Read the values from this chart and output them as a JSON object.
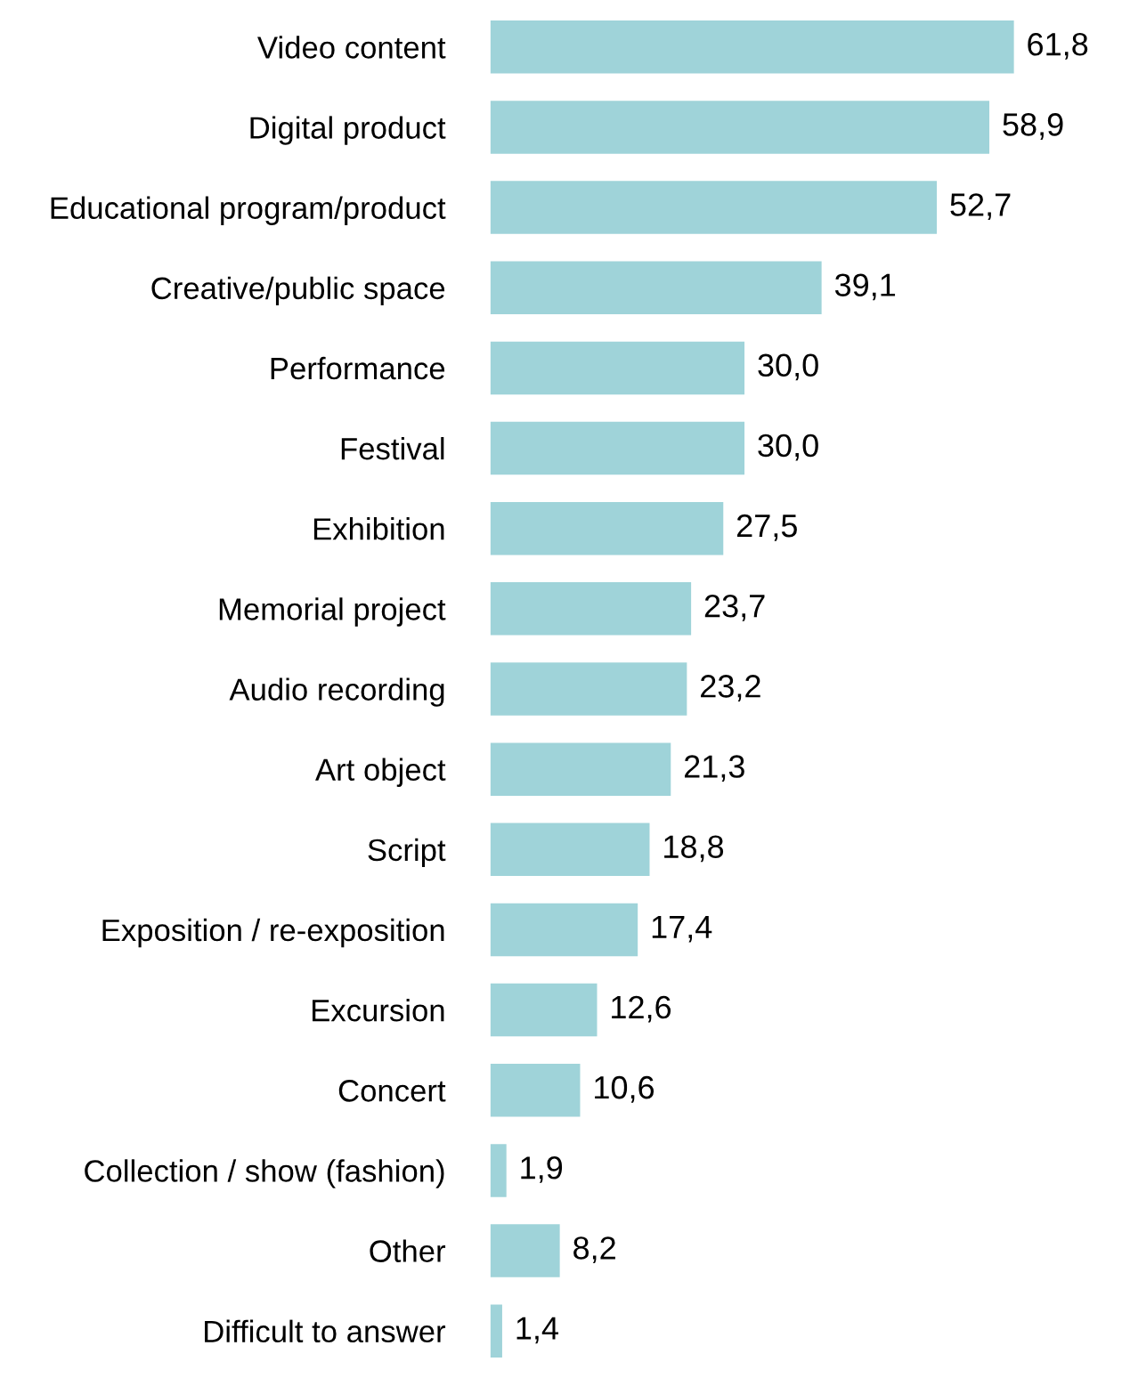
{
  "chart_data": {
    "type": "bar",
    "orientation": "horizontal",
    "categories": [
      "Video content",
      "Digital product",
      "Educational program/product",
      "Creative/public space",
      "Performance",
      "Festival",
      "Exhibition",
      "Memorial project",
      "Audio recording",
      "Art object",
      "Script",
      "Exposition / re-exposition",
      "Excursion",
      "Concert",
      "Collection / show (fashion)",
      "Other",
      "Difficult to answer"
    ],
    "values": [
      61.8,
      58.9,
      52.7,
      39.1,
      30.0,
      30.0,
      27.5,
      23.7,
      23.2,
      21.3,
      18.8,
      17.4,
      12.6,
      10.6,
      1.9,
      8.2,
      1.4
    ],
    "value_labels": [
      "61,8",
      "58,9",
      "52,7",
      "39,1",
      "30,0",
      "30,0",
      "27,5",
      "23,7",
      "23,2",
      "21,3",
      "18,8",
      "17,4",
      "12,6",
      "10,6",
      "1,9",
      "8,2",
      "1,4"
    ],
    "color": "#9fd3d9",
    "grid": false,
    "legend": false
  }
}
